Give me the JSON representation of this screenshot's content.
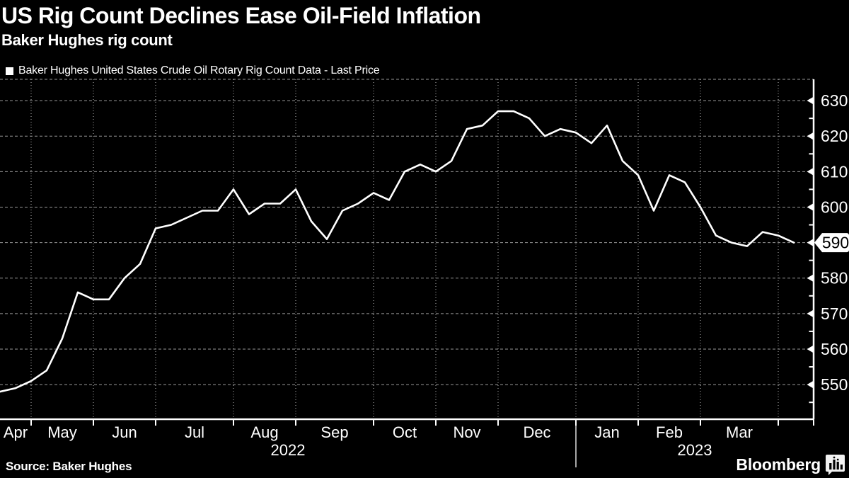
{
  "header": {
    "title": "US Rig Count Declines Ease Oil-Field Inflation",
    "subtitle": "Baker Hughes rig count",
    "legend_label": "Baker Hughes United States Crude Oil Rotary Rig Count Data - Last Price"
  },
  "chart_data": {
    "type": "line",
    "title": "Baker Hughes rig count",
    "xlabel": "",
    "ylabel": "",
    "grid": true,
    "legend_position": "top-left",
    "background_color": "#000000",
    "grid_color": "#999999",
    "axis_color": "#ffffff",
    "ylim": [
      540.25,
      636.0
    ],
    "y_ticks": [
      550,
      560,
      570,
      580,
      590,
      600,
      610,
      620,
      630
    ],
    "y_minor_ticks": [
      545,
      555,
      565,
      575,
      585,
      595,
      605,
      615,
      625
    ],
    "x_month_labels": [
      "Apr",
      "May",
      "Jun",
      "Jul",
      "Aug",
      "Sep",
      "Oct",
      "Nov",
      "Dec",
      "Jan",
      "Feb",
      "Mar"
    ],
    "x_year_labels": [
      "2022",
      "2023"
    ],
    "month_start_indices": [
      2,
      6,
      10,
      15,
      19,
      24,
      28,
      32,
      37,
      41,
      45,
      50
    ],
    "year_divider_index": 37,
    "last_price": 590,
    "series": [
      {
        "name": "Baker Hughes United States Crude Oil Rotary Rig Count Data - Last Price",
        "color": "#ffffff",
        "dates": [
          "2022-04-22",
          "2022-04-29",
          "2022-05-06",
          "2022-05-13",
          "2022-05-20",
          "2022-05-27",
          "2022-06-03",
          "2022-06-10",
          "2022-06-17",
          "2022-06-24",
          "2022-07-01",
          "2022-07-08",
          "2022-07-15",
          "2022-07-22",
          "2022-07-29",
          "2022-08-05",
          "2022-08-12",
          "2022-08-19",
          "2022-08-26",
          "2022-09-02",
          "2022-09-09",
          "2022-09-16",
          "2022-09-23",
          "2022-09-30",
          "2022-10-07",
          "2022-10-14",
          "2022-10-21",
          "2022-10-28",
          "2022-11-04",
          "2022-11-11",
          "2022-11-18",
          "2022-11-25",
          "2022-12-02",
          "2022-12-09",
          "2022-12-16",
          "2022-12-23",
          "2022-12-30",
          "2023-01-06",
          "2023-01-13",
          "2023-01-20",
          "2023-01-27",
          "2023-02-03",
          "2023-02-10",
          "2023-02-17",
          "2023-02-24",
          "2023-03-03",
          "2023-03-10",
          "2023-03-17",
          "2023-03-24",
          "2023-03-31",
          "2023-04-07",
          "2023-04-14"
        ],
        "values": [
          548,
          549,
          551,
          554,
          563,
          576,
          574,
          574,
          580,
          584,
          594,
          595,
          597,
          599,
          599,
          605,
          598,
          601,
          601,
          605,
          596,
          591,
          599,
          601,
          604,
          602,
          610,
          612,
          610,
          613,
          622,
          623,
          627,
          627,
          625,
          620,
          622,
          621,
          618,
          623,
          613,
          609,
          599,
          609,
          607,
          600,
          592,
          590,
          589,
          593,
          592,
          590
        ]
      }
    ]
  },
  "footer": {
    "source": "Source: Baker Hughes",
    "brand": "Bloomberg",
    "brand_icon": "bloomberg-terminal-icon"
  }
}
